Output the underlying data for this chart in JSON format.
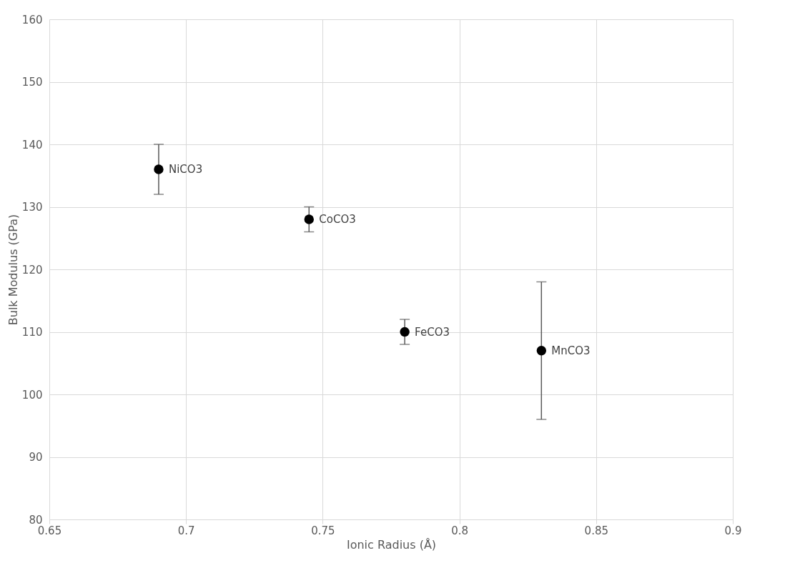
{
  "chart_data": {
    "type": "scatter",
    "xlabel": "Ionic Radius (Å)",
    "ylabel": "Bulk Modulus (GPa)",
    "x": [
      0.69,
      0.745,
      0.78,
      0.83
    ],
    "series": [
      {
        "color": "#000000",
        "values": [
          136,
          128,
          110,
          107
        ],
        "errors": [
          [
            132,
            140
          ],
          [
            126,
            130
          ],
          [
            108,
            112
          ],
          [
            96,
            118
          ]
        ]
      }
    ],
    "annotations": [
      {
        "text": "NiCO3",
        "x": 0.69,
        "y": 136
      },
      {
        "text": "CoCO3",
        "x": 0.745,
        "y": 128
      },
      {
        "text": "FeCO3",
        "x": 0.78,
        "y": 110
      },
      {
        "text": "MnCO3",
        "x": 0.83,
        "y": 107
      }
    ],
    "xlim": [
      0.65,
      0.9
    ],
    "xticks": [
      0.65,
      0.7,
      0.75,
      0.8,
      0.85,
      0.9
    ],
    "ylim": [
      80,
      160
    ],
    "yticks": [
      80,
      90,
      100,
      110,
      120,
      130,
      140,
      150,
      160
    ],
    "grid": true,
    "marker": "circle"
  }
}
